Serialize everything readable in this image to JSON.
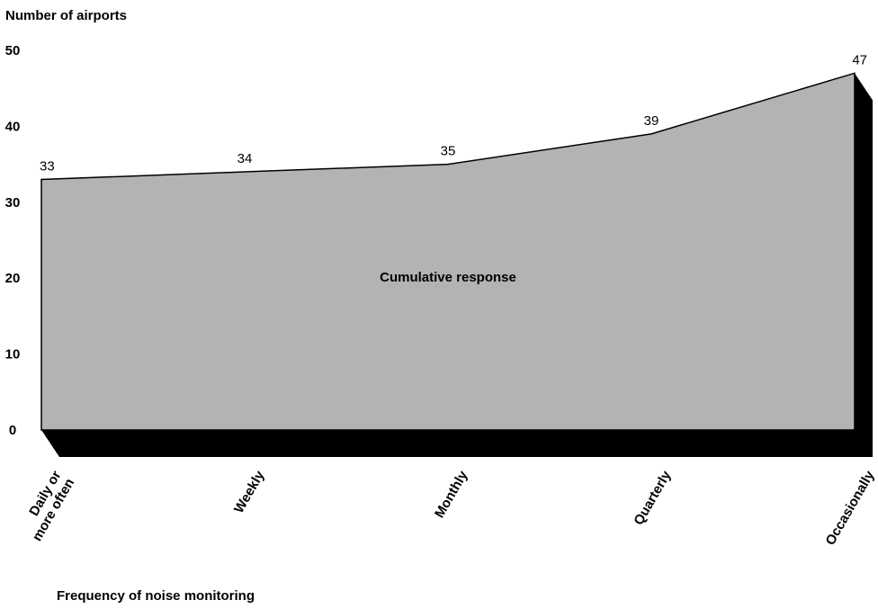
{
  "chart_data": {
    "type": "area",
    "ylabel": "Number of airports",
    "xlabel": "Frequency of noise monitoring",
    "area_label": "Cumulative response",
    "categories": [
      "Daily or more often",
      "Weekly",
      "Monthly",
      "Quarterly",
      "Occasionally"
    ],
    "category_lines": [
      [
        "Daily or",
        "more often"
      ],
      [
        "Weekly"
      ],
      [
        "Monthly"
      ],
      [
        "Quarterly"
      ],
      [
        "Occasionally"
      ]
    ],
    "values": [
      33,
      34,
      35,
      39,
      47
    ],
    "data_labels": [
      "33",
      "34",
      "35",
      "39",
      "47"
    ],
    "yticks": [
      "0",
      "10",
      "20",
      "30",
      "40",
      "50"
    ],
    "ylim": [
      0,
      50
    ],
    "grid": false,
    "legend": "none",
    "colors": {
      "fill": "#b3b3b3",
      "shadow": "#000000",
      "line": "#000000"
    }
  }
}
